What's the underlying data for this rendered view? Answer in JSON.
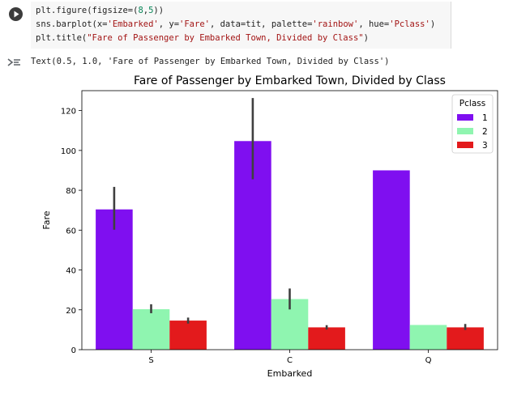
{
  "code_cell": {
    "lines": [
      [
        "plt.figure(figsize=(",
        "8",
        ",",
        "5",
        "))"
      ],
      [
        "sns.barplot(x=",
        "'Embarked'",
        ", y=",
        "'Fare'",
        ", data=tit, palette=",
        "'rainbow'",
        ", hue=",
        "'Pclass'",
        ")"
      ],
      [
        "plt.title(",
        "\"Fare of Passenger by Embarked Town, Divided by Class\"",
        ")"
      ]
    ],
    "run_icon": "play-icon"
  },
  "output": {
    "text": "Text(0.5, 1.0, 'Fare of Passenger by Embarked Town, Divided by Class')",
    "icon": "output-toggle-icon"
  },
  "chart_data": {
    "type": "bar",
    "title": "Fare of Passenger by Embarked Town, Divided by Class",
    "xlabel": "Embarked",
    "ylabel": "Fare",
    "categories": [
      "S",
      "C",
      "Q"
    ],
    "ylim": [
      0,
      130
    ],
    "yticks": [
      0,
      20,
      40,
      60,
      80,
      100,
      120
    ],
    "legend": {
      "title": "Pclass",
      "position": "top-right"
    },
    "series": [
      {
        "name": "1",
        "color": "#7f0ff0",
        "values": [
          70.4,
          104.7,
          90.0
        ],
        "ci_low": [
          60.2,
          85.5,
          null
        ],
        "ci_high": [
          81.7,
          126.3,
          null
        ]
      },
      {
        "name": "2",
        "color": "#8ff5b0",
        "values": [
          20.3,
          25.4,
          12.4
        ],
        "ci_low": [
          18.3,
          20.2,
          null
        ],
        "ci_high": [
          22.8,
          30.7,
          null
        ]
      },
      {
        "name": "3",
        "color": "#e31a1c",
        "values": [
          14.6,
          11.2,
          11.2
        ],
        "ci_low": [
          13.1,
          10.1,
          9.9
        ],
        "ci_high": [
          16.1,
          12.3,
          12.9
        ]
      }
    ]
  }
}
